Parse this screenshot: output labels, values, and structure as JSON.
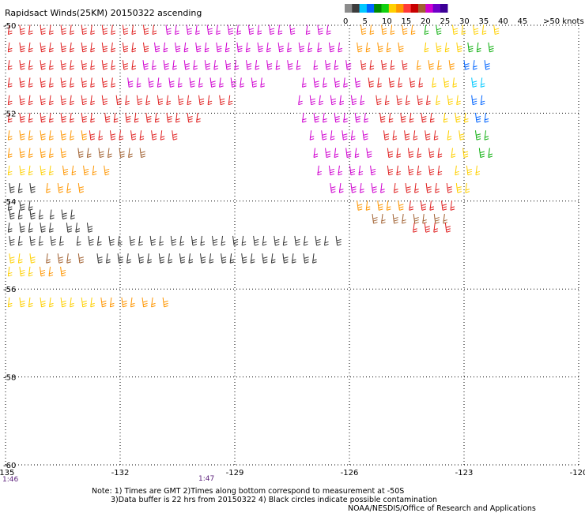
{
  "title": "Rapidsact Winds(25KM) 20150322 ascending",
  "legend": {
    "labels": [
      "0",
      "5",
      "10",
      "15",
      "20",
      "25",
      "30",
      "35",
      "40",
      "45",
      ">50 knots"
    ],
    "colors": [
      "#8c8c8c",
      "#3c3c3c",
      "#00c8ff",
      "#0064ff",
      "#008c00",
      "#10d010",
      "#ffd000",
      "#ff9600",
      "#ff3a3a",
      "#c80000",
      "#a06030",
      "#d000d0",
      "#6e00c8",
      "#3c0096"
    ]
  },
  "axes": {
    "lon_labels": [
      "-135",
      "-132",
      "-129",
      "-126",
      "-123",
      "-120"
    ],
    "lat_labels": [
      "-50",
      "-52",
      "-54",
      "-56",
      "-58",
      "-60"
    ],
    "lon_range": [
      -135,
      -120
    ],
    "lat_range": [
      -50,
      -60
    ]
  },
  "times": [
    "1:46",
    "1:47"
  ],
  "notes": [
    "Note: 1) Times are GMT 2)Times along bottom correspond to measurement at -50S",
    "3)Data buffer is 22 hrs from 20150322 4) Black circles indicate possible contamination",
    "NOAA/NESDIS/Office of Research and Applications"
  ],
  "wind_colors": {
    "calm": "#333333",
    "light": "#ffd000",
    "orange": "#ff9600",
    "brown": "#a06030",
    "red": "#e02020",
    "magenta": "#d000d0",
    "green": "#10b010",
    "blue": "#0064ff",
    "cyan": "#00c8ff"
  },
  "wind_rows": [
    {
      "lat": -50.1,
      "lon0": -134.9,
      "lon1": -131.0,
      "color": "red"
    },
    {
      "lat": -50.1,
      "lon0": -130.8,
      "lon1": -127.3,
      "color": "magenta"
    },
    {
      "lat": -50.1,
      "lon0": -127.1,
      "lon1": -126.3,
      "color": "magenta"
    },
    {
      "lat": -50.1,
      "lon0": -125.7,
      "lon1": -124.2,
      "color": "orange"
    },
    {
      "lat": -50.1,
      "lon0": -124.0,
      "lon1": -123.5,
      "color": "green"
    },
    {
      "lat": -50.1,
      "lon0": -123.3,
      "lon1": -122.2,
      "color": "light"
    },
    {
      "lat": -50.5,
      "lon0": -134.9,
      "lon1": -131.3,
      "color": "red"
    },
    {
      "lat": -50.5,
      "lon0": -131.1,
      "lon1": -127.0,
      "color": "magenta"
    },
    {
      "lat": -50.5,
      "lon0": -126.8,
      "lon1": -126.2,
      "color": "magenta"
    },
    {
      "lat": -50.5,
      "lon0": -125.8,
      "lon1": -124.5,
      "color": "orange"
    },
    {
      "lat": -50.5,
      "lon0": -124.0,
      "lon1": -123.0,
      "color": "light"
    },
    {
      "lat": -50.5,
      "lon0": -122.9,
      "lon1": -122.3,
      "color": "green"
    },
    {
      "lat": -50.9,
      "lon0": -134.9,
      "lon1": -131.6,
      "color": "red"
    },
    {
      "lat": -50.9,
      "lon0": -131.4,
      "lon1": -127.2,
      "color": "magenta"
    },
    {
      "lat": -50.9,
      "lon0": -126.9,
      "lon1": -126.0,
      "color": "magenta"
    },
    {
      "lat": -50.9,
      "lon0": -125.7,
      "lon1": -124.5,
      "color": "red"
    },
    {
      "lat": -50.9,
      "lon0": -124.2,
      "lon1": -123.2,
      "color": "orange"
    },
    {
      "lat": -50.9,
      "lon0": -123.0,
      "lon1": -122.2,
      "color": "blue"
    },
    {
      "lat": -51.3,
      "lon0": -134.9,
      "lon1": -132.0,
      "color": "red"
    },
    {
      "lat": -51.3,
      "lon0": -131.8,
      "lon1": -128.2,
      "color": "magenta"
    },
    {
      "lat": -51.3,
      "lon0": -127.2,
      "lon1": -125.8,
      "color": "magenta"
    },
    {
      "lat": -51.3,
      "lon0": -125.5,
      "lon1": -124.0,
      "color": "red"
    },
    {
      "lat": -51.3,
      "lon0": -123.8,
      "lon1": -123.0,
      "color": "light"
    },
    {
      "lat": -51.3,
      "lon0": -122.8,
      "lon1": -122.3,
      "color": "cyan"
    },
    {
      "lat": -51.7,
      "lon0": -134.9,
      "lon1": -132.3,
      "color": "red"
    },
    {
      "lat": -51.7,
      "lon0": -132.1,
      "lon1": -129.1,
      "color": "red"
    },
    {
      "lat": -51.7,
      "lon0": -127.3,
      "lon1": -125.6,
      "color": "magenta"
    },
    {
      "lat": -51.7,
      "lon0": -125.3,
      "lon1": -123.9,
      "color": "red"
    },
    {
      "lat": -51.7,
      "lon0": -123.7,
      "lon1": -123.0,
      "color": "light"
    },
    {
      "lat": -51.7,
      "lon0": -122.8,
      "lon1": -122.3,
      "color": "blue"
    },
    {
      "lat": -52.1,
      "lon0": -134.9,
      "lon1": -132.6,
      "color": "red"
    },
    {
      "lat": -52.1,
      "lon0": -132.4,
      "lon1": -129.8,
      "color": "red"
    },
    {
      "lat": -52.1,
      "lon0": -127.2,
      "lon1": -125.5,
      "color": "magenta"
    },
    {
      "lat": -52.1,
      "lon0": -125.2,
      "lon1": -123.7,
      "color": "red"
    },
    {
      "lat": -52.1,
      "lon0": -123.5,
      "lon1": -122.9,
      "color": "light"
    },
    {
      "lat": -52.1,
      "lon0": -122.7,
      "lon1": -122.3,
      "color": "blue"
    },
    {
      "lat": -52.5,
      "lon0": -134.9,
      "lon1": -133.0,
      "color": "orange"
    },
    {
      "lat": -52.5,
      "lon0": -132.8,
      "lon1": -130.6,
      "color": "red"
    },
    {
      "lat": -52.5,
      "lon0": -127.0,
      "lon1": -125.4,
      "color": "magenta"
    },
    {
      "lat": -52.5,
      "lon0": -125.1,
      "lon1": -123.6,
      "color": "red"
    },
    {
      "lat": -52.5,
      "lon0": -123.4,
      "lon1": -122.9,
      "color": "light"
    },
    {
      "lat": -52.5,
      "lon0": -122.7,
      "lon1": -122.4,
      "color": "green"
    },
    {
      "lat": -52.9,
      "lon0": -134.9,
      "lon1": -133.3,
      "color": "orange"
    },
    {
      "lat": -52.9,
      "lon0": -133.1,
      "lon1": -131.4,
      "color": "brown"
    },
    {
      "lat": -52.9,
      "lon0": -126.9,
      "lon1": -125.3,
      "color": "magenta"
    },
    {
      "lat": -52.9,
      "lon0": -125.0,
      "lon1": -123.5,
      "color": "red"
    },
    {
      "lat": -52.9,
      "lon0": -123.3,
      "lon1": -122.8,
      "color": "light"
    },
    {
      "lat": -52.9,
      "lon0": -122.6,
      "lon1": -122.3,
      "color": "green"
    },
    {
      "lat": -53.3,
      "lon0": -134.9,
      "lon1": -133.7,
      "color": "light"
    },
    {
      "lat": -53.3,
      "lon0": -133.5,
      "lon1": -132.2,
      "color": "orange"
    },
    {
      "lat": -53.3,
      "lon0": -126.8,
      "lon1": -125.2,
      "color": "magenta"
    },
    {
      "lat": -53.3,
      "lon0": -125.0,
      "lon1": -123.4,
      "color": "red"
    },
    {
      "lat": -53.3,
      "lon0": -123.2,
      "lon1": -122.6,
      "color": "light"
    },
    {
      "lat": -53.7,
      "lon0": -134.9,
      "lon1": -134.1,
      "color": "calm"
    },
    {
      "lat": -53.7,
      "lon0": -133.9,
      "lon1": -133.0,
      "color": "orange"
    },
    {
      "lat": -53.7,
      "lon0": -126.5,
      "lon1": -125.0,
      "color": "magenta"
    },
    {
      "lat": -53.7,
      "lon0": -124.8,
      "lon1": -123.4,
      "color": "red"
    },
    {
      "lat": -53.7,
      "lon0": -123.2,
      "lon1": -122.9,
      "color": "light"
    },
    {
      "lat": -54.1,
      "lon0": -134.9,
      "lon1": -134.2,
      "color": "calm"
    },
    {
      "lat": -54.1,
      "lon0": -125.8,
      "lon1": -124.6,
      "color": "orange"
    },
    {
      "lat": -54.1,
      "lon0": -124.4,
      "lon1": -123.3,
      "color": "red"
    },
    {
      "lat": -54.3,
      "lon0": -134.9,
      "lon1": -134.0,
      "color": "calm"
    },
    {
      "lat": -54.3,
      "lon0": -133.8,
      "lon1": -133.1,
      "color": "calm"
    },
    {
      "lat": -54.4,
      "lon0": -125.4,
      "lon1": -123.4,
      "color": "brown"
    },
    {
      "lat": -54.6,
      "lon0": -134.9,
      "lon1": -133.6,
      "color": "calm"
    },
    {
      "lat": -54.6,
      "lon0": -133.4,
      "lon1": -132.6,
      "color": "calm"
    },
    {
      "lat": -54.6,
      "lon0": -124.3,
      "lon1": -123.4,
      "color": "red"
    },
    {
      "lat": -54.9,
      "lon0": -134.9,
      "lon1": -133.3,
      "color": "calm"
    },
    {
      "lat": -54.9,
      "lon0": -133.1,
      "lon1": -126.1,
      "color": "calm"
    },
    {
      "lat": -55.3,
      "lon0": -134.9,
      "lon1": -134.1,
      "color": "light"
    },
    {
      "lat": -55.3,
      "lon0": -133.9,
      "lon1": -133.0,
      "color": "brown"
    },
    {
      "lat": -55.3,
      "lon0": -132.6,
      "lon1": -126.9,
      "color": "calm"
    },
    {
      "lat": -55.6,
      "lon0": -134.9,
      "lon1": -134.3,
      "color": "light"
    },
    {
      "lat": -55.6,
      "lon0": -134.1,
      "lon1": -133.5,
      "color": "orange"
    },
    {
      "lat": -56.3,
      "lon0": -134.9,
      "lon1": -132.7,
      "color": "light"
    },
    {
      "lat": -56.3,
      "lon0": -132.5,
      "lon1": -130.8,
      "color": "orange"
    }
  ]
}
